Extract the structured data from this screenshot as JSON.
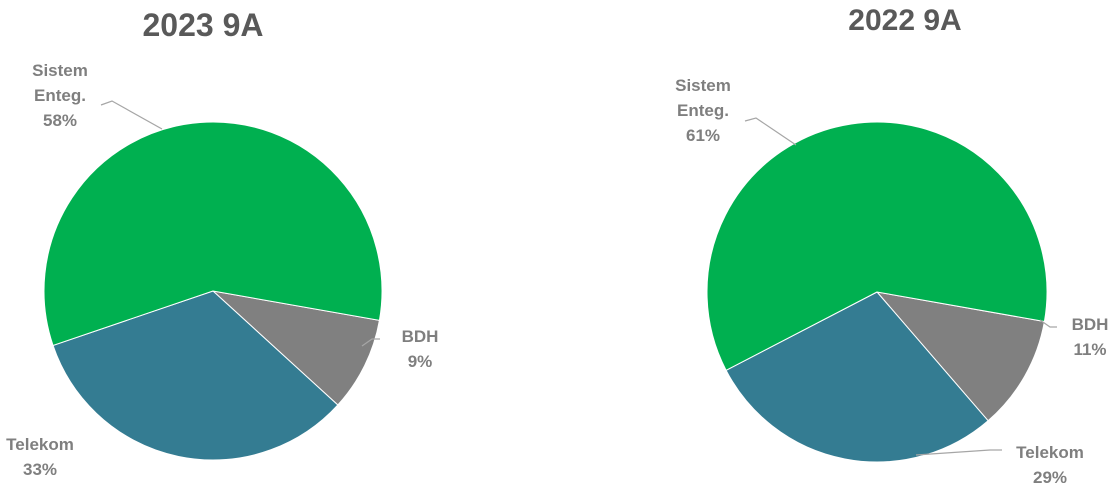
{
  "chart_data": [
    {
      "type": "pie",
      "title": "2023 9A",
      "categories": [
        "BDH",
        "Telekom",
        "Sistem Enteg."
      ],
      "label_lines": [
        [
          "BDH",
          "9%"
        ],
        [
          "Telekom",
          "33%"
        ],
        [
          "Sistem",
          "Enteg.",
          "58%"
        ]
      ],
      "values": [
        9,
        33,
        58
      ],
      "colors": [
        "#808080",
        "#347c92",
        "#00b050"
      ]
    },
    {
      "type": "pie",
      "title": "2022 9A",
      "categories": [
        "BDH",
        "Telekom",
        "Sistem Enteg."
      ],
      "label_lines": [
        [
          "BDH",
          "11%"
        ],
        [
          "Telekom",
          "29%"
        ],
        [
          "Sistem",
          "Enteg.",
          "61%"
        ]
      ],
      "values": [
        11,
        29,
        61
      ],
      "colors": [
        "#808080",
        "#347c92",
        "#00b050"
      ]
    }
  ]
}
